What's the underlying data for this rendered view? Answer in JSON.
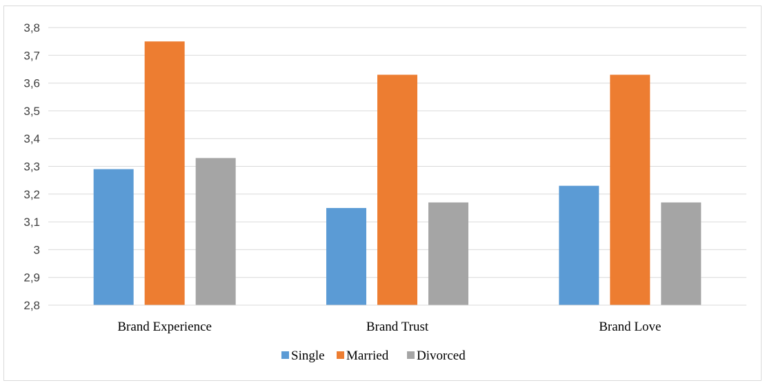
{
  "chart_data": {
    "type": "bar",
    "title": "",
    "xlabel": "",
    "ylabel": "",
    "categories": [
      "Brand Experience",
      "Brand Trust",
      "Brand Love"
    ],
    "series": [
      {
        "name": "Single",
        "color": "#5b9bd5",
        "values": [
          3.29,
          3.15,
          3.23
        ]
      },
      {
        "name": "Married",
        "color": "#ed7d31",
        "values": [
          3.75,
          3.63,
          3.63
        ]
      },
      {
        "name": "Divorced",
        "color": "#a5a5a5",
        "values": [
          3.33,
          3.17,
          3.17
        ]
      }
    ],
    "ylim": [
      2.8,
      3.8
    ],
    "yticks": [
      "2,8",
      "2,9",
      "3",
      "3,1",
      "3,2",
      "3,3",
      "3,4",
      "3,5",
      "3,6",
      "3,7",
      "3,8"
    ],
    "grid": true,
    "legend": "bottom-center"
  }
}
